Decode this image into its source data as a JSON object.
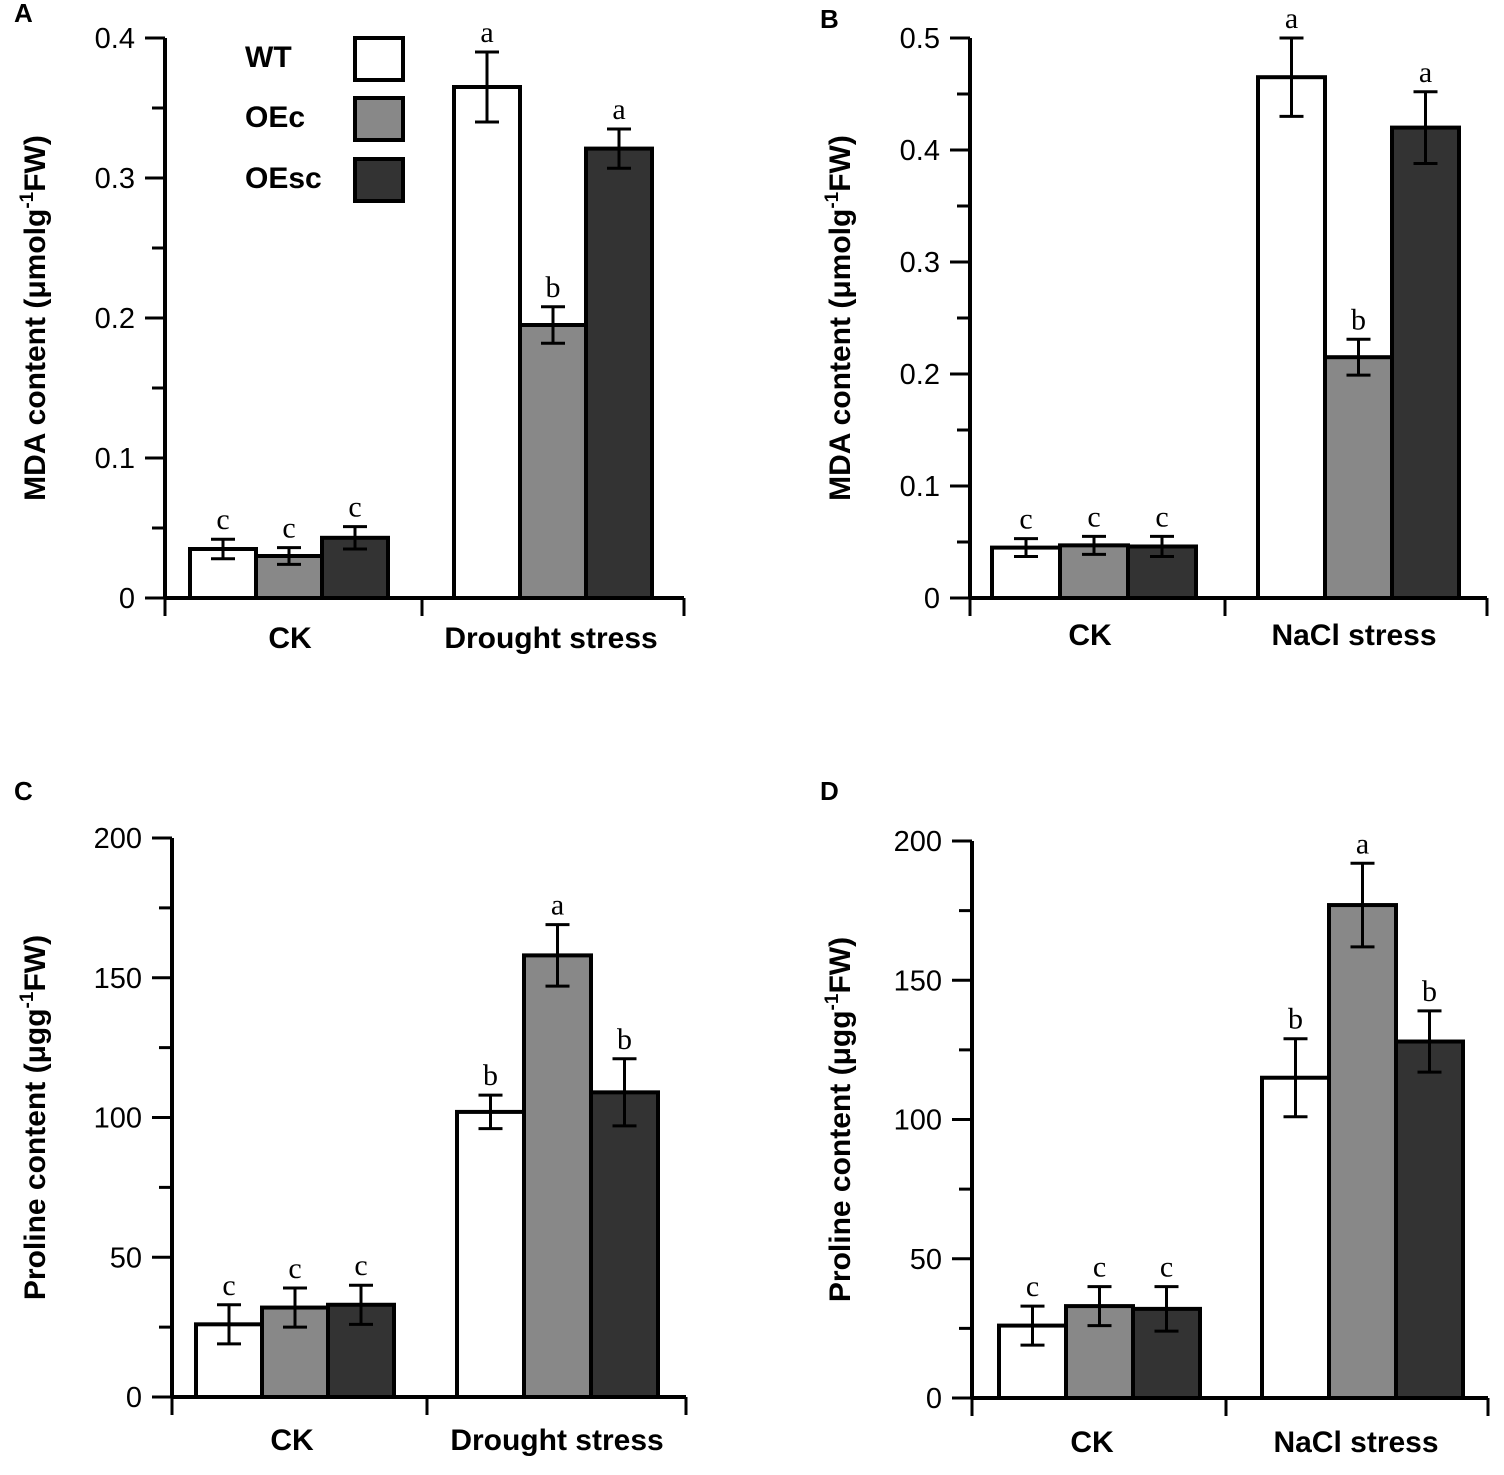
{
  "legend": {
    "entries": [
      {
        "label": "WT",
        "color": "#ffffff"
      },
      {
        "label": "OEc",
        "color": "#888888"
      },
      {
        "label": "OEsc",
        "color": "#333333"
      }
    ]
  },
  "chart_data": [
    {
      "panel": "A",
      "type": "bar",
      "title": "",
      "ylabel_main": "MDA content (μmolg",
      "ylabel_sup": "-1",
      "ylabel_end": "FW)",
      "ylim": [
        0,
        0.4
      ],
      "yticks": [
        0,
        0.1,
        0.2,
        0.3,
        0.4
      ],
      "ytick_labels": [
        "0",
        "0.1",
        "0.2",
        "0.3",
        "0.4"
      ],
      "categories": [
        "CK",
        "Drought stress"
      ],
      "series": [
        {
          "name": "WT",
          "values": [
            0.035,
            0.365
          ],
          "errors": [
            0.007,
            0.025
          ],
          "letters": [
            "c",
            "a"
          ]
        },
        {
          "name": "OEc",
          "values": [
            0.03,
            0.195
          ],
          "errors": [
            0.006,
            0.013
          ],
          "letters": [
            "c",
            "b"
          ]
        },
        {
          "name": "OEsc",
          "values": [
            0.043,
            0.321
          ],
          "errors": [
            0.008,
            0.014
          ],
          "letters": [
            "c",
            "a"
          ]
        }
      ]
    },
    {
      "panel": "B",
      "type": "bar",
      "title": "",
      "ylabel_main": "MDA content (μmolg",
      "ylabel_sup": "-1",
      "ylabel_end": "FW)",
      "ylim": [
        0,
        0.5
      ],
      "yticks": [
        0,
        0.1,
        0.2,
        0.3,
        0.4,
        0.5
      ],
      "ytick_labels": [
        "0",
        "0.1",
        "0.2",
        "0.3",
        "0.4",
        "0.5"
      ],
      "categories": [
        "CK",
        "NaCl stress"
      ],
      "series": [
        {
          "name": "WT",
          "values": [
            0.045,
            0.465
          ],
          "errors": [
            0.008,
            0.035
          ],
          "letters": [
            "c",
            "a"
          ]
        },
        {
          "name": "OEc",
          "values": [
            0.047,
            0.215
          ],
          "errors": [
            0.008,
            0.016
          ],
          "letters": [
            "c",
            "b"
          ]
        },
        {
          "name": "OEsc",
          "values": [
            0.046,
            0.42
          ],
          "errors": [
            0.009,
            0.032
          ],
          "letters": [
            "c",
            "a"
          ]
        }
      ]
    },
    {
      "panel": "C",
      "type": "bar",
      "title": "",
      "ylabel_main": "Proline content (μgg",
      "ylabel_sup": "-1",
      "ylabel_end": "FW)",
      "ylim": [
        0,
        200
      ],
      "yticks": [
        0,
        50,
        100,
        150,
        200
      ],
      "ytick_labels": [
        "0",
        "50",
        "100",
        "150",
        "200"
      ],
      "categories": [
        "CK",
        "Drought stress"
      ],
      "series": [
        {
          "name": "WT",
          "values": [
            26,
            102
          ],
          "errors": [
            7,
            6
          ],
          "letters": [
            "c",
            "b"
          ]
        },
        {
          "name": "OEc",
          "values": [
            32,
            158
          ],
          "errors": [
            7,
            11
          ],
          "letters": [
            "c",
            "a"
          ]
        },
        {
          "name": "OEsc",
          "values": [
            33,
            109
          ],
          "errors": [
            7,
            12
          ],
          "letters": [
            "c",
            "b"
          ]
        }
      ]
    },
    {
      "panel": "D",
      "type": "bar",
      "title": "",
      "ylabel_main": "Proline content (μgg",
      "ylabel_sup": "-1",
      "ylabel_end": "FW)",
      "ylim": [
        0,
        200
      ],
      "yticks": [
        0,
        50,
        100,
        150,
        200
      ],
      "ytick_labels": [
        "0",
        "50",
        "100",
        "150",
        "200"
      ],
      "categories": [
        "CK",
        "NaCl stress"
      ],
      "series": [
        {
          "name": "WT",
          "values": [
            26,
            115
          ],
          "errors": [
            7,
            14
          ],
          "letters": [
            "c",
            "b"
          ]
        },
        {
          "name": "OEc",
          "values": [
            33,
            177
          ],
          "errors": [
            7,
            15
          ],
          "letters": [
            "c",
            "a"
          ]
        },
        {
          "name": "OEsc",
          "values": [
            32,
            128
          ],
          "errors": [
            8,
            11
          ],
          "letters": [
            "c",
            "b"
          ]
        }
      ]
    }
  ]
}
